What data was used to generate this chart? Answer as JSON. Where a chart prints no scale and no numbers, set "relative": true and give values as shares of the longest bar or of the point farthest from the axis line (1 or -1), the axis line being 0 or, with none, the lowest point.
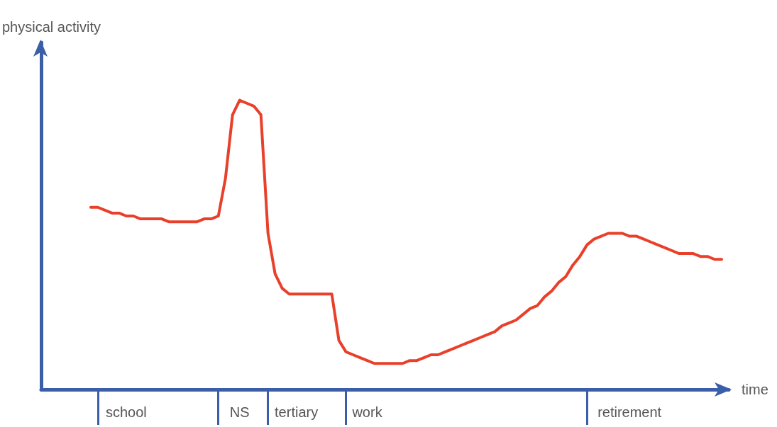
{
  "chart_data": {
    "type": "line",
    "relative": true,
    "xlabel": "time",
    "ylabel": "physical activity",
    "categories": [
      null,
      null,
      null,
      null,
      null,
      null,
      null,
      null,
      null,
      null,
      null,
      null,
      "school",
      null,
      null,
      null,
      null,
      null,
      null,
      null,
      null,
      null,
      null,
      null,
      null,
      null,
      null,
      null,
      "NS",
      null,
      null,
      null,
      null,
      null,
      null,
      null,
      "tertiary",
      null,
      null,
      null,
      null,
      null,
      null,
      null,
      null,
      null,
      "work",
      null,
      null,
      null,
      null,
      null,
      null,
      null,
      null,
      null,
      null,
      null,
      null,
      null,
      null,
      null,
      null,
      null,
      null,
      null,
      null,
      null,
      null,
      null,
      null,
      null,
      null,
      null,
      null,
      null,
      null,
      null,
      null,
      null,
      null,
      null,
      null,
      "retirement",
      null,
      null,
      null,
      null,
      null,
      null,
      null,
      null,
      null,
      null,
      null,
      null,
      null,
      null
    ],
    "series": [
      {
        "color": "#e8402a",
        "values": [
          null,
          null,
          null,
          null,
          null,
          null,
          null,
          0.63,
          0.63,
          0.62,
          0.61,
          0.61,
          0.6,
          0.6,
          0.59,
          0.59,
          0.59,
          0.59,
          0.58,
          0.58,
          0.58,
          0.58,
          0.58,
          0.59,
          0.59,
          0.6,
          0.73,
          0.95,
          1.0,
          0.99,
          0.98,
          0.95,
          0.54,
          0.4,
          0.35,
          0.33,
          0.33,
          0.33,
          0.33,
          0.33,
          0.33,
          0.33,
          0.17,
          0.13,
          0.12,
          0.11,
          0.1,
          0.09,
          0.09,
          0.09,
          0.09,
          0.09,
          0.1,
          0.1,
          0.11,
          0.12,
          0.12,
          0.13,
          0.14,
          0.15,
          0.16,
          0.17,
          0.18,
          0.19,
          0.2,
          0.22,
          0.23,
          0.24,
          0.26,
          0.28,
          0.29,
          0.32,
          0.34,
          0.37,
          0.39,
          0.43,
          0.46,
          0.5,
          0.52,
          0.53,
          0.54,
          0.54,
          0.54,
          0.53,
          0.53,
          0.52,
          0.51,
          0.5,
          0.49,
          0.48,
          0.47,
          0.47,
          0.47,
          0.46,
          0.46,
          0.45,
          0.45,
          null
        ]
      }
    ],
    "grid": false,
    "marker": "none",
    "line_style": "solid"
  }
}
